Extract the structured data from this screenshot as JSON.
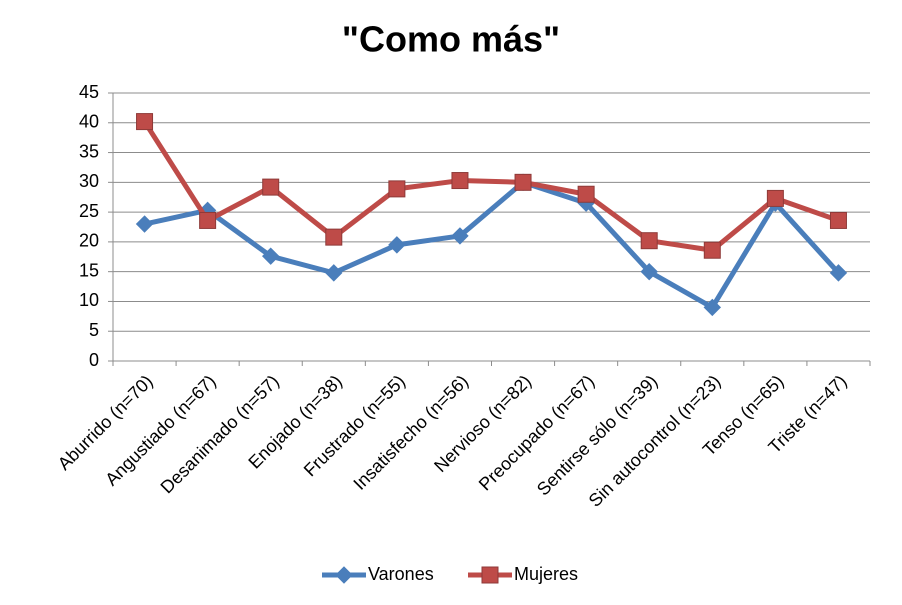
{
  "chart_data": {
    "type": "line",
    "title": "\"Como más\"",
    "categories": [
      "Aburrido (n=70)",
      "Angustiado (n=67)",
      "Desanimado (n=57)",
      "Enojado (n=38)",
      "Frustrado (n=55)",
      "Insatisfecho (n=56)",
      "Nervioso (n=82)",
      "Preocupado (n=67)",
      "Sentirse sólo (n=39)",
      "Sin autocontrol (n=23)",
      "Tenso (n=65)",
      "Triste (n=47)"
    ],
    "series": [
      {
        "name": "Varones",
        "color": "#4a7ebb",
        "marker": "diamond",
        "values": [
          23,
          25.3,
          17.6,
          14.8,
          19.5,
          21,
          30,
          26.5,
          15,
          9,
          26.5,
          14.8
        ]
      },
      {
        "name": "Mujeres",
        "color": "#be4b48",
        "marker": "square",
        "values": [
          40.2,
          23.6,
          29.2,
          20.8,
          28.9,
          30.3,
          30,
          28,
          20.2,
          18.6,
          27.3,
          23.6
        ]
      }
    ],
    "ylim": [
      0,
      45
    ],
    "yticks": [
      0,
      5,
      10,
      15,
      20,
      25,
      30,
      35,
      40,
      45
    ],
    "grid": true,
    "legend": "bottom"
  }
}
